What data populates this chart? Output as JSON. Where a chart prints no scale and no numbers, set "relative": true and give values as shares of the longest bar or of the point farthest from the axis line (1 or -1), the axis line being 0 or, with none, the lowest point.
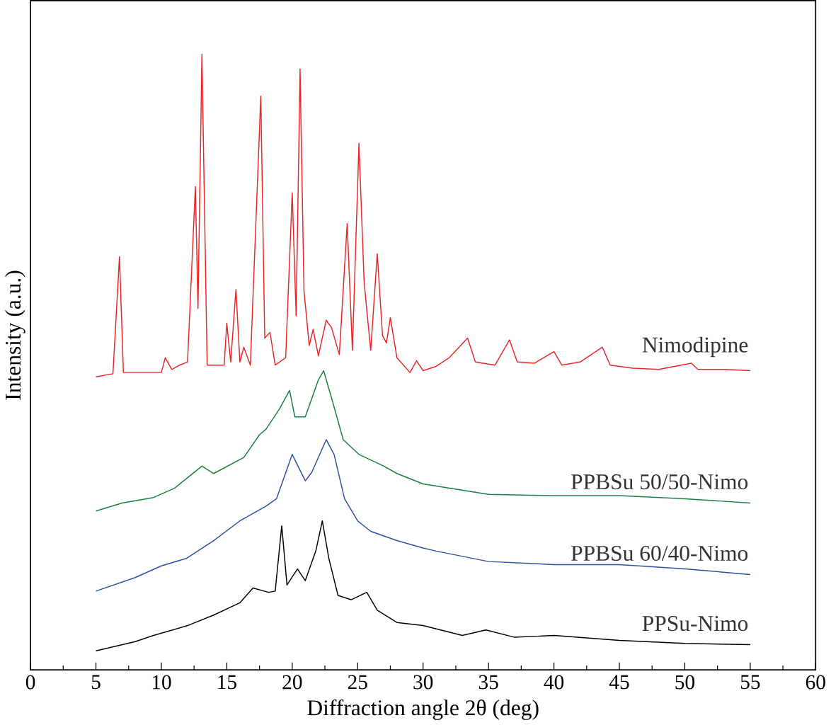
{
  "chart_data": {
    "type": "line",
    "relative": true,
    "xlabel": "Diffraction angle 2θ (deg)",
    "ylabel": "Intensity (a.u.)",
    "xlim": [
      0,
      60
    ],
    "xticks": [
      0,
      5,
      10,
      15,
      20,
      25,
      30,
      35,
      40,
      45,
      50,
      55,
      60
    ],
    "legend": false,
    "grid": false,
    "marker": "none",
    "line_style": "solid",
    "series": [
      {
        "name": "Nimodipine",
        "color": "#e8262a",
        "x": [
          5,
          6.3,
          6.8,
          7.1,
          10,
          10.3,
          10.8,
          11.4,
          12.0,
          12.6,
          12.8,
          13.1,
          13.5,
          14.8,
          15.0,
          15.3,
          15.7,
          16.0,
          16.3,
          16.8,
          17.6,
          17.9,
          18.3,
          18.7,
          19.5,
          20.0,
          20.3,
          20.6,
          20.9,
          21.3,
          21.6,
          22.0,
          22.6,
          23.0,
          23.6,
          24.2,
          24.6,
          25.1,
          25.5,
          26.0,
          26.5,
          26.9,
          27.2,
          27.5,
          28.0,
          29.0,
          29.5,
          30.0,
          31.0,
          32.0,
          33.4,
          34.0,
          35.5,
          36.6,
          37.2,
          38.5,
          40.0,
          40.6,
          42.0,
          43.7,
          44.3,
          46,
          48,
          50.5,
          51,
          53,
          55
        ],
        "values": [
          0.476,
          0.481,
          0.671,
          0.483,
          0.483,
          0.507,
          0.488,
          0.495,
          0.5,
          0.785,
          0.587,
          1.0,
          0.495,
          0.495,
          0.563,
          0.5,
          0.618,
          0.5,
          0.524,
          0.495,
          0.932,
          0.539,
          0.548,
          0.495,
          0.507,
          0.775,
          0.575,
          0.976,
          0.616,
          0.527,
          0.553,
          0.51,
          0.568,
          0.556,
          0.512,
          0.725,
          0.519,
          0.855,
          0.628,
          0.519,
          0.676,
          0.543,
          0.531,
          0.572,
          0.507,
          0.483,
          0.502,
          0.486,
          0.493,
          0.507,
          0.539,
          0.5,
          0.495,
          0.536,
          0.5,
          0.498,
          0.517,
          0.495,
          0.5,
          0.524,
          0.495,
          0.49,
          0.488,
          0.498,
          0.488,
          0.488,
          0.486
        ]
      },
      {
        "name": "PPBSu 50/50-Nimo",
        "color": "#1a8040",
        "x": [
          5,
          7,
          9.4,
          11,
          13.1,
          14,
          16.3,
          17.5,
          18,
          19,
          19.8,
          20.2,
          21.0,
          22.0,
          22.4,
          23,
          23.9,
          25.1,
          27,
          28,
          30,
          35,
          40,
          45,
          50,
          55
        ],
        "values": [
          0.258,
          0.271,
          0.28,
          0.295,
          0.331,
          0.319,
          0.345,
          0.382,
          0.391,
          0.423,
          0.454,
          0.411,
          0.411,
          0.471,
          0.486,
          0.442,
          0.374,
          0.35,
          0.331,
          0.319,
          0.302,
          0.285,
          0.283,
          0.283,
          0.278,
          0.271
        ]
      },
      {
        "name": "PPBSu 60/40-Nimo",
        "color": "#2e4ea0",
        "x": [
          5,
          8,
          10,
          11.9,
          14,
          16,
          18,
          18.8,
          20.0,
          21.0,
          21.5,
          22.6,
          23.2,
          24,
          25,
          26,
          28,
          30,
          31,
          35,
          40,
          45,
          50,
          55
        ],
        "values": [
          0.128,
          0.15,
          0.169,
          0.181,
          0.21,
          0.242,
          0.266,
          0.278,
          0.35,
          0.307,
          0.321,
          0.374,
          0.35,
          0.278,
          0.242,
          0.225,
          0.21,
          0.198,
          0.193,
          0.176,
          0.171,
          0.171,
          0.164,
          0.155
        ]
      },
      {
        "name": "PPSu-Nimo",
        "color": "#000000",
        "x": [
          5,
          8,
          9.4,
          12,
          14,
          16,
          17,
          18.2,
          18.7,
          19.2,
          19.6,
          20.4,
          21.0,
          21.8,
          22.3,
          22.8,
          23.5,
          24.5,
          25.7,
          26.5,
          28,
          30,
          33,
          34.8,
          37,
          40,
          45,
          50,
          55
        ],
        "values": [
          0.031,
          0.046,
          0.056,
          0.072,
          0.089,
          0.109,
          0.133,
          0.126,
          0.128,
          0.234,
          0.138,
          0.164,
          0.145,
          0.193,
          0.242,
          0.181,
          0.121,
          0.114,
          0.126,
          0.097,
          0.077,
          0.072,
          0.056,
          0.065,
          0.053,
          0.056,
          0.048,
          0.043,
          0.041
        ]
      }
    ]
  }
}
